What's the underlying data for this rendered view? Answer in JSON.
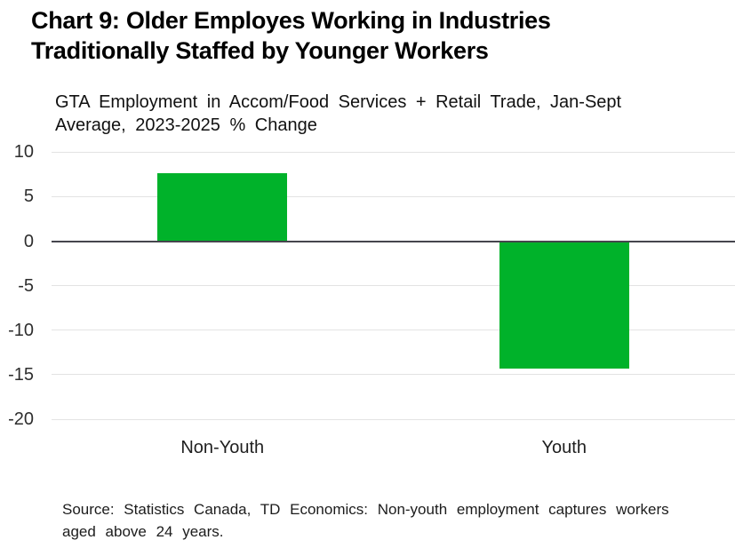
{
  "chart_data": {
    "type": "bar",
    "title": "Chart 9: Older Employes Working in Industries\nTraditionally Staffed by Younger Workers",
    "subtitle": "GTA Employment in Accom/Food Services + Retail Trade, Jan-Sept\nAverage, 2023-2025 % Change",
    "categories": [
      "Non-Youth",
      "Youth"
    ],
    "values": [
      7.6,
      -14.3
    ],
    "xlabel": "",
    "ylabel": "",
    "ylim": [
      -20,
      10
    ],
    "yticks": [
      10,
      5,
      0,
      -5,
      -10,
      -15,
      -20
    ],
    "grid": true,
    "legend": "none",
    "colors": {
      "bar": "#00b22a",
      "gridline": "#e3e3e3",
      "zero_line": "#45454d",
      "title_text": "#000000",
      "body_text": "#1c1c1c"
    },
    "source_note": "Source: Statistics Canada, TD Economics: Non-youth employment captures workers\naged above 24 years."
  }
}
